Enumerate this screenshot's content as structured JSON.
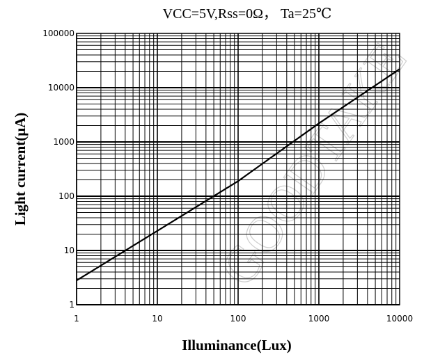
{
  "chart_data": {
    "type": "line",
    "title": "VCC=5V,Rss=0Ω， Ta=25℃",
    "xlabel": "Illuminance(Lux)",
    "ylabel": "Light current(μA)",
    "x_scale": "log",
    "y_scale": "log",
    "xlim": [
      1,
      10000
    ],
    "ylim": [
      1,
      100000
    ],
    "x_ticks": [
      1,
      10,
      100,
      1000,
      10000
    ],
    "x_tick_labels": [
      "1",
      "10",
      "100",
      "1000",
      "10000"
    ],
    "y_ticks": [
      1,
      10,
      100,
      1000,
      10000,
      100000
    ],
    "y_tick_labels": [
      "1",
      "10",
      "100",
      "1000",
      "10000",
      "100000"
    ],
    "grid": true,
    "series": [
      {
        "x": [
          1,
          10,
          100,
          1000,
          10000
        ],
        "y": [
          2.8,
          23,
          190,
          2200,
          22000
        ],
        "color": "#000000"
      }
    ]
  },
  "watermark": "GOODTAKE"
}
